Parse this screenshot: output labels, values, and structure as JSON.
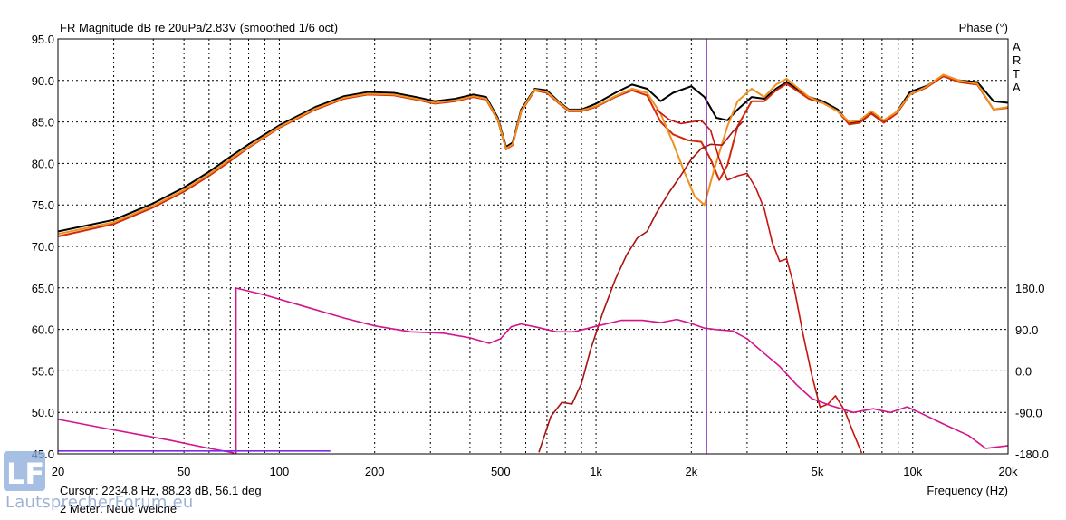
{
  "chart_data": {
    "type": "line",
    "title": "FR Magnitude dB re 20uPa/2.83V (smoothed 1/6 oct)",
    "right_title": "Phase (°)",
    "branding": [
      "A",
      "R",
      "T",
      "A"
    ],
    "xlabel": "Frequency (Hz)",
    "xscale": "log",
    "xlim": [
      20,
      20000
    ],
    "ylim": [
      45,
      95
    ],
    "y2lim": [
      -180,
      180
    ],
    "x_ticks": [
      20,
      50,
      100,
      200,
      500,
      1000,
      2000,
      5000,
      10000,
      20000
    ],
    "x_tick_labels": [
      "20",
      "50",
      "100",
      "200",
      "500",
      "1k",
      "2k",
      "5k",
      "10k",
      "20k"
    ],
    "y_ticks": [
      45,
      50,
      55,
      60,
      65,
      70,
      75,
      80,
      85,
      90,
      95
    ],
    "y_tick_labels": [
      "45.0",
      "50.0",
      "55.0",
      "60.0",
      "65.0",
      "70.0",
      "75.0",
      "80.0",
      "85.0",
      "90.0",
      "95.0"
    ],
    "y2_ticks": [
      -180,
      -90,
      0,
      90,
      180
    ],
    "y2_tick_labels": [
      "-180.0",
      "-90.0",
      "0.0",
      "90.0",
      "180.0"
    ],
    "grid": true,
    "cursor": {
      "freq": 2234.8,
      "text": "Cursor: 2234.8 Hz, 88.23 dB, 56.1 deg",
      "color": "#8a2aa8"
    },
    "footer_note": "2 Meter: Neue Weiche",
    "watermark": "LautsprecherForum.eu",
    "series": [
      {
        "color": "#000000",
        "width": 2,
        "axis": "left",
        "points": [
          [
            20,
            71.8
          ],
          [
            30,
            73.2
          ],
          [
            40,
            75.2
          ],
          [
            50,
            77.1
          ],
          [
            60,
            79
          ],
          [
            70,
            80.8
          ],
          [
            80,
            82.3
          ],
          [
            100,
            84.6
          ],
          [
            130,
            86.8
          ],
          [
            160,
            88.1
          ],
          [
            190,
            88.6
          ],
          [
            230,
            88.5
          ],
          [
            270,
            88
          ],
          [
            310,
            87.5
          ],
          [
            360,
            87.8
          ],
          [
            410,
            88.3
          ],
          [
            450,
            88
          ],
          [
            490,
            85.5
          ],
          [
            520,
            82
          ],
          [
            545,
            82.5
          ],
          [
            580,
            86.5
          ],
          [
            640,
            89
          ],
          [
            700,
            88.8
          ],
          [
            760,
            87.5
          ],
          [
            820,
            86.5
          ],
          [
            900,
            86.5
          ],
          [
            1000,
            87.2
          ],
          [
            1150,
            88.5
          ],
          [
            1300,
            89.5
          ],
          [
            1450,
            89
          ],
          [
            1600,
            87.5
          ],
          [
            1750,
            88.5
          ],
          [
            2000,
            89.3
          ],
          [
            2200,
            88
          ],
          [
            2400,
            85.5
          ],
          [
            2600,
            85.2
          ],
          [
            2800,
            86.5
          ],
          [
            3100,
            88
          ],
          [
            3400,
            87.8
          ],
          [
            3700,
            89
          ],
          [
            4000,
            89.8
          ],
          [
            4300,
            89
          ],
          [
            4700,
            88
          ],
          [
            5200,
            87.5
          ],
          [
            5800,
            86.5
          ],
          [
            6300,
            84.8
          ],
          [
            6800,
            85
          ],
          [
            7400,
            86.2
          ],
          [
            8100,
            85
          ],
          [
            8900,
            86.2
          ],
          [
            9800,
            88.6
          ],
          [
            11000,
            89.3
          ],
          [
            12500,
            90.5
          ],
          [
            14000,
            90
          ],
          [
            16000,
            89.8
          ],
          [
            18000,
            87.5
          ],
          [
            20000,
            87.3
          ]
        ]
      },
      {
        "color": "#d22a0a",
        "width": 2,
        "axis": "left",
        "points": [
          [
            20,
            71.2
          ],
          [
            30,
            72.7
          ],
          [
            40,
            74.7
          ],
          [
            50,
            76.6
          ],
          [
            60,
            78.5
          ],
          [
            70,
            80.3
          ],
          [
            80,
            81.9
          ],
          [
            100,
            84.3
          ],
          [
            130,
            86.5
          ],
          [
            160,
            87.8
          ],
          [
            190,
            88.3
          ],
          [
            230,
            88.2
          ],
          [
            270,
            87.7
          ],
          [
            310,
            87.2
          ],
          [
            360,
            87.5
          ],
          [
            410,
            88
          ],
          [
            450,
            87.7
          ],
          [
            490,
            85.2
          ],
          [
            520,
            81.7
          ],
          [
            545,
            82.2
          ],
          [
            580,
            86.2
          ],
          [
            640,
            88.8
          ],
          [
            700,
            88.5
          ],
          [
            760,
            87.3
          ],
          [
            820,
            86.3
          ],
          [
            900,
            86.3
          ],
          [
            1000,
            86.8
          ],
          [
            1150,
            88
          ],
          [
            1300,
            88.8
          ],
          [
            1450,
            88.2
          ],
          [
            1600,
            85
          ],
          [
            1750,
            83.5
          ],
          [
            1950,
            82.8
          ],
          [
            2150,
            82.6
          ],
          [
            2300,
            80.5
          ],
          [
            2450,
            78
          ],
          [
            2600,
            79.8
          ],
          [
            2800,
            84.5
          ],
          [
            3100,
            87.5
          ],
          [
            3400,
            87.5
          ],
          [
            3700,
            88.8
          ],
          [
            4000,
            89.6
          ],
          [
            4300,
            88.8
          ],
          [
            4700,
            87.8
          ],
          [
            5200,
            87.3
          ],
          [
            5800,
            86.3
          ],
          [
            6300,
            84.7
          ],
          [
            6800,
            84.9
          ],
          [
            7400,
            86
          ],
          [
            8100,
            84.9
          ],
          [
            8900,
            86
          ],
          [
            9800,
            88.3
          ],
          [
            11000,
            89.1
          ],
          [
            12500,
            90.5
          ],
          [
            14000,
            89.8
          ],
          [
            16000,
            89.5
          ],
          [
            18000,
            86.5
          ],
          [
            20000,
            86.7
          ]
        ]
      },
      {
        "color": "#f0901e",
        "width": 2,
        "axis": "left",
        "points": [
          [
            20,
            71.5
          ],
          [
            30,
            72.9
          ],
          [
            40,
            74.9
          ],
          [
            50,
            76.8
          ],
          [
            60,
            78.7
          ],
          [
            70,
            80.5
          ],
          [
            80,
            82
          ],
          [
            100,
            84.4
          ],
          [
            130,
            86.6
          ],
          [
            160,
            87.9
          ],
          [
            190,
            88.4
          ],
          [
            230,
            88.3
          ],
          [
            270,
            87.8
          ],
          [
            310,
            87.3
          ],
          [
            360,
            87.6
          ],
          [
            410,
            88.1
          ],
          [
            450,
            87.8
          ],
          [
            490,
            85.3
          ],
          [
            520,
            81.8
          ],
          [
            545,
            82.3
          ],
          [
            580,
            86.3
          ],
          [
            640,
            88.9
          ],
          [
            700,
            88.6
          ],
          [
            760,
            87.4
          ],
          [
            820,
            86.4
          ],
          [
            900,
            86.4
          ],
          [
            1000,
            86.9
          ],
          [
            1150,
            88.1
          ],
          [
            1300,
            89
          ],
          [
            1450,
            88.5
          ],
          [
            1600,
            86
          ],
          [
            1750,
            82.5
          ],
          [
            1900,
            79
          ],
          [
            2050,
            76
          ],
          [
            2200,
            75
          ],
          [
            2350,
            79
          ],
          [
            2600,
            84.5
          ],
          [
            2800,
            87.5
          ],
          [
            3100,
            89
          ],
          [
            3400,
            88
          ],
          [
            3700,
            89.5
          ],
          [
            4000,
            90.2
          ],
          [
            4300,
            89.2
          ],
          [
            4700,
            88
          ],
          [
            5200,
            87.3
          ],
          [
            5800,
            86.3
          ],
          [
            6300,
            85
          ],
          [
            6800,
            85.2
          ],
          [
            7400,
            86.3
          ],
          [
            8100,
            85.2
          ],
          [
            8900,
            86.2
          ],
          [
            9800,
            88.3
          ],
          [
            11000,
            89.2
          ],
          [
            12500,
            90.7
          ],
          [
            14000,
            90
          ],
          [
            16000,
            89.6
          ],
          [
            18000,
            86.5
          ],
          [
            20000,
            86.8
          ]
        ]
      },
      {
        "color": "#a81414",
        "width": 1.6,
        "axis": "left",
        "points": [
          [
            660,
            45.2
          ],
          [
            720,
            49.5
          ],
          [
            780,
            51.2
          ],
          [
            840,
            51
          ],
          [
            900,
            53.5
          ],
          [
            960,
            57.5
          ],
          [
            1050,
            62
          ],
          [
            1150,
            66
          ],
          [
            1250,
            69
          ],
          [
            1350,
            71
          ],
          [
            1450,
            71.8
          ],
          [
            1550,
            74
          ],
          [
            1700,
            76.5
          ],
          [
            1850,
            78.5
          ],
          [
            2000,
            80.5
          ],
          [
            2150,
            81.8
          ],
          [
            2300,
            82.3
          ],
          [
            2500,
            82.2
          ],
          [
            2700,
            83.8
          ],
          [
            2900,
            85
          ]
        ]
      },
      {
        "color": "#c8140e",
        "width": 1.6,
        "axis": "left",
        "points": [
          [
            1550,
            86.5
          ],
          [
            1700,
            85.3
          ],
          [
            1850,
            84.8
          ],
          [
            2000,
            85
          ],
          [
            2150,
            85.2
          ],
          [
            2300,
            84
          ],
          [
            2450,
            80.5
          ],
          [
            2600,
            78
          ],
          [
            2800,
            78.5
          ],
          [
            3000,
            78.8
          ],
          [
            3200,
            77
          ],
          [
            3400,
            74.5
          ],
          [
            3600,
            70.5
          ],
          [
            3800,
            68.2
          ],
          [
            4000,
            68.5
          ],
          [
            4200,
            65.5
          ],
          [
            4500,
            59.5
          ],
          [
            4800,
            54.5
          ],
          [
            5100,
            50.6
          ],
          [
            5400,
            51
          ],
          [
            5700,
            52
          ],
          [
            6100,
            50.2
          ],
          [
            6500,
            47.5
          ],
          [
            6900,
            45.1
          ]
        ]
      },
      {
        "color": "#d4148c",
        "width": 1.6,
        "axis": "right",
        "points": [
          [
            20,
            -105
          ],
          [
            30,
            -128
          ],
          [
            45,
            -150
          ],
          [
            60,
            -168
          ],
          [
            72,
            -178
          ]
        ]
      },
      {
        "color": "#d4148c",
        "width": 1.6,
        "axis": "right",
        "points": [
          [
            73,
            -180
          ],
          [
            73,
            180
          ],
          [
            90,
            165
          ],
          [
            120,
            140
          ],
          [
            160,
            115
          ],
          [
            200,
            98
          ],
          [
            260,
            85
          ],
          [
            330,
            82
          ],
          [
            400,
            72
          ],
          [
            460,
            60
          ],
          [
            500,
            70
          ],
          [
            540,
            96
          ],
          [
            580,
            102
          ],
          [
            650,
            95
          ],
          [
            750,
            85
          ],
          [
            850,
            85
          ],
          [
            1000,
            97
          ],
          [
            1200,
            110
          ],
          [
            1400,
            110
          ],
          [
            1600,
            105
          ],
          [
            1800,
            112
          ],
          [
            2000,
            103
          ],
          [
            2200,
            93
          ],
          [
            2400,
            90
          ],
          [
            2700,
            87
          ],
          [
            3000,
            70
          ],
          [
            3400,
            38
          ],
          [
            3800,
            10
          ],
          [
            4300,
            -30
          ],
          [
            4800,
            -60
          ],
          [
            5500,
            -75
          ],
          [
            6500,
            -90
          ],
          [
            7500,
            -82
          ],
          [
            8500,
            -90
          ],
          [
            9600,
            -78
          ],
          [
            10500,
            -90
          ],
          [
            12500,
            -115
          ],
          [
            15000,
            -140
          ],
          [
            17000,
            -168
          ],
          [
            20000,
            -162
          ]
        ]
      },
      {
        "color": "#7a2ee6",
        "width": 1.6,
        "axis": "left",
        "points": [
          [
            20,
            45.35
          ],
          [
            145,
            45.35
          ]
        ]
      }
    ]
  }
}
